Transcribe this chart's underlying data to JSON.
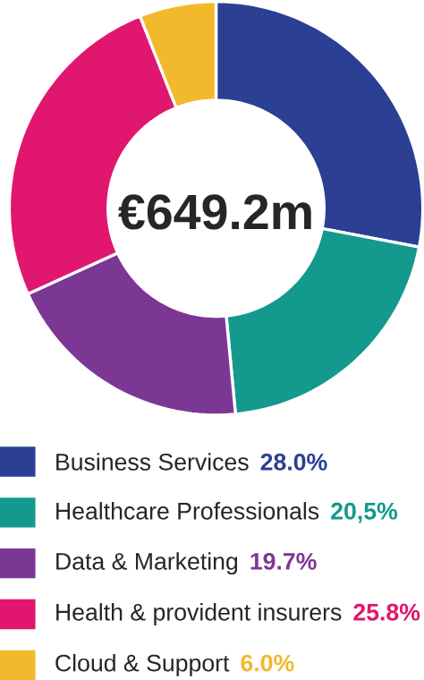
{
  "chart_data": {
    "type": "donut",
    "categories": [
      "Business Services",
      "Healthcare Professionals",
      "Data & Marketing",
      "Health & provident insurers",
      "Cloud & Support"
    ],
    "values": [
      28.0,
      20.5,
      19.7,
      25.8,
      6.0
    ],
    "colors": [
      "#2b3f93",
      "#13998d",
      "#7c3794",
      "#e0166f",
      "#f1b92b"
    ],
    "value_labels": [
      "28.0%",
      "20,5%",
      "19.7%",
      "25.8%",
      "6.0%"
    ],
    "annotations": [
      "€649.2m"
    ],
    "legend": "bottom"
  }
}
